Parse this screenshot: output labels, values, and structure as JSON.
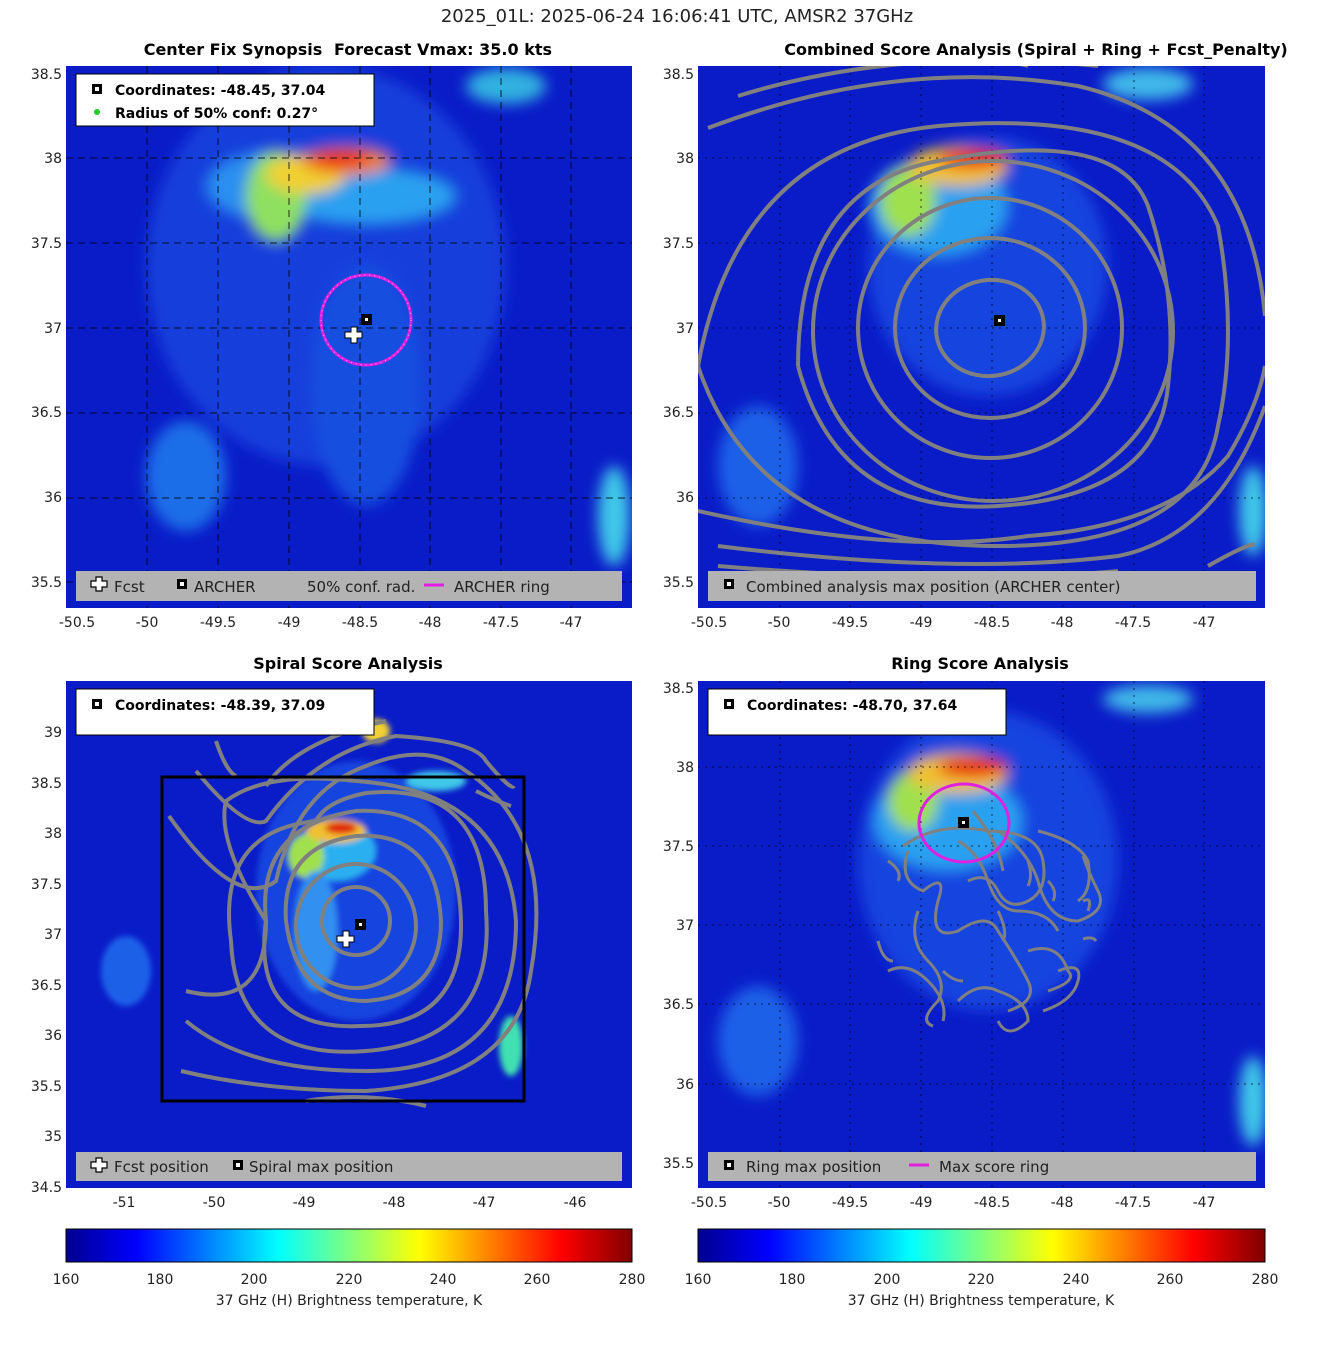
{
  "figure_title": "2025_01L: 2025-06-24 16:06:41 UTC, AMSR2 37GHz",
  "colors": {
    "archer_ring": "#e020e0",
    "contour": "#808080",
    "legend_bg": "#b3b3b3",
    "conf_dot": "#22cc22"
  },
  "chart_data": [
    {
      "type": "heatmap",
      "id": "center-fix",
      "title_left": "Center Fix Synopsis",
      "title_right": "Forecast Vmax: 35.0 kts",
      "xlim": [
        -50.5,
        -46.6
      ],
      "ylim": [
        35.35,
        38.55
      ],
      "xticks": [
        "-50.5",
        "-50",
        "-49.5",
        "-49",
        "-48.5",
        "-48",
        "-47.5",
        "-47"
      ],
      "yticks": [
        "35.5",
        "36",
        "36.5",
        "37",
        "37.5",
        "38",
        "38.5"
      ],
      "grid": true,
      "info_lines": [
        "Coordinates: -48.45, 37.04",
        "Radius of 50% conf: 0.27°"
      ],
      "legend": [
        "Fcst",
        "ARCHER",
        "50% conf. rad.",
        "ARCHER ring"
      ],
      "archer_center": [
        -48.45,
        37.04
      ],
      "forecast_position": [
        -48.58,
        36.95
      ],
      "ring_radius_deg": 0.27
    },
    {
      "type": "heatmap",
      "id": "combined",
      "title": "Combined Score Analysis (Spiral + Ring + Fcst_Penalty)",
      "xlim": [
        -50.5,
        -46.6
      ],
      "ylim": [
        35.35,
        38.55
      ],
      "xticks": [
        "-50.5",
        "-50",
        "-49.5",
        "-49",
        "-48.5",
        "-48",
        "-47.5",
        "-47"
      ],
      "yticks": [
        "35.5",
        "36",
        "36.5",
        "37",
        "37.5",
        "38",
        "38.5"
      ],
      "grid": true,
      "legend": [
        "Combined analysis max position (ARCHER center)"
      ],
      "max_position": [
        -48.45,
        37.04
      ],
      "contour_levels": 8
    },
    {
      "type": "heatmap",
      "id": "spiral",
      "title": "Spiral Score Analysis",
      "xlim": [
        -51.5,
        -45.4
      ],
      "ylim": [
        34.5,
        39.5
      ],
      "xticks": [
        "-51",
        "-50",
        "-49",
        "-48",
        "-47",
        "-46"
      ],
      "yticks": [
        "34.5",
        "35",
        "35.5",
        "36",
        "36.5",
        "37",
        "37.5",
        "38",
        "38.5",
        "39"
      ],
      "grid": false,
      "info_lines": [
        "Coordinates: -48.39, 37.09"
      ],
      "legend": [
        "Fcst position",
        "Spiral max position"
      ],
      "max_position": [
        -48.39,
        37.09
      ],
      "forecast_position": [
        -48.58,
        36.95
      ],
      "search_box": {
        "x": [
          -50.45,
          -46.55
        ],
        "y": [
          35.35,
          38.55
        ]
      }
    },
    {
      "type": "heatmap",
      "id": "ring",
      "title": "Ring Score Analysis",
      "xlim": [
        -50.5,
        -46.6
      ],
      "ylim": [
        35.35,
        38.55
      ],
      "xticks": [
        "-50.5",
        "-50",
        "-49.5",
        "-49",
        "-48.5",
        "-48",
        "-47.5",
        "-47"
      ],
      "yticks": [
        "35.5",
        "36",
        "36.5",
        "37",
        "37.5",
        "38",
        "38.5"
      ],
      "grid": true,
      "info_lines": [
        "Coordinates: -48.70, 37.64"
      ],
      "legend": [
        "Ring max position",
        "Max score ring"
      ],
      "max_position": [
        -48.7,
        37.64
      ],
      "ring_radius_deg": 0.27
    }
  ],
  "colorbar": {
    "label": "37 GHz (H) Brightness temperature, K",
    "range": [
      160,
      280
    ],
    "ticks": [
      "160",
      "180",
      "200",
      "220",
      "240",
      "260",
      "280"
    ]
  }
}
